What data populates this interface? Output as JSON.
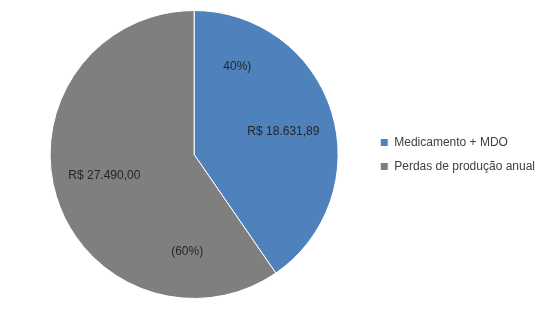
{
  "chart_data": {
    "type": "pie",
    "categories": [
      "Medicamento + MDO",
      "Perdas de produção anual"
    ],
    "values": [
      18631.89,
      27490.0
    ],
    "value_labels": [
      "R$ 18.631,89",
      "R$ 27.490,00"
    ],
    "percentages": [
      40,
      60
    ],
    "percentage_labels": [
      "40%)",
      "(60%)"
    ],
    "colors": [
      "#4f81bd",
      "#7f7f7f"
    ],
    "legend": "right",
    "data_labels": true
  }
}
